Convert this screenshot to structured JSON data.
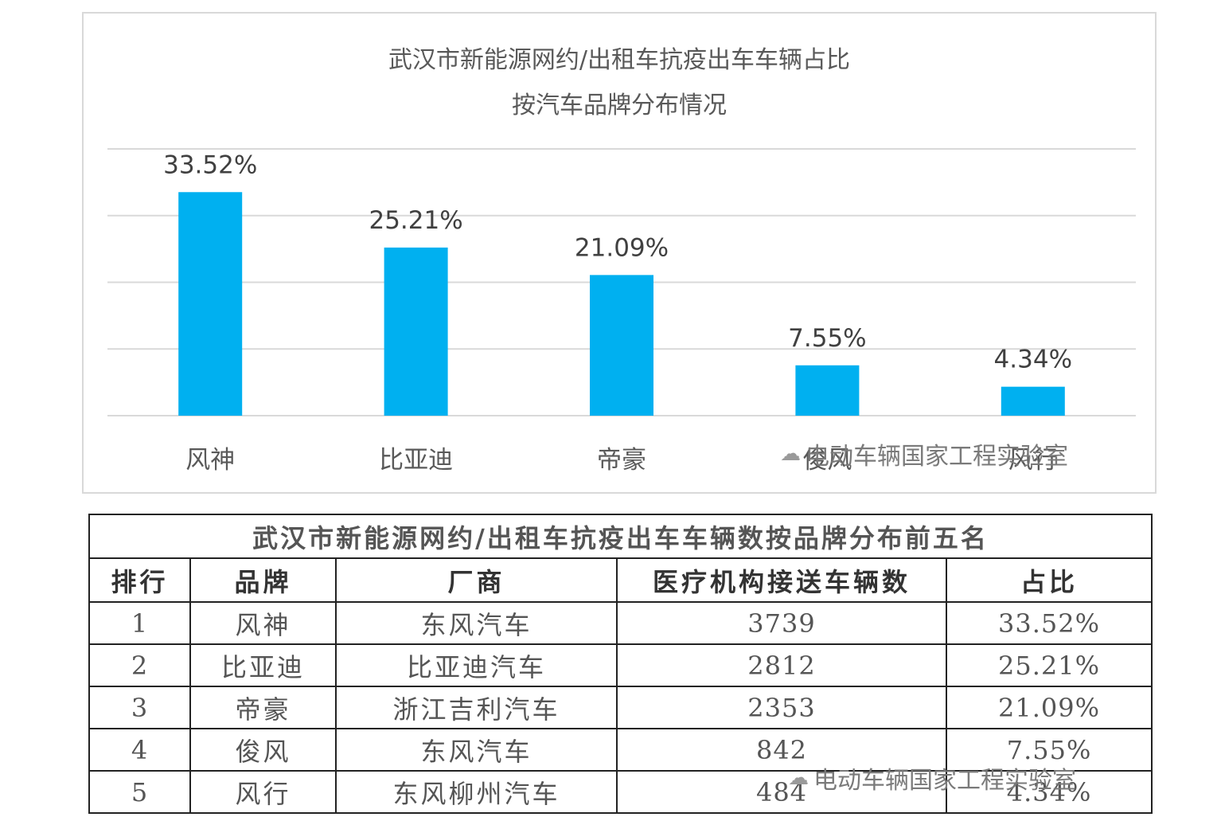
{
  "chart_data": {
    "type": "bar",
    "title": "武汉市新能源网约/出租车抗疫出车车辆占比",
    "subtitle": "按汽车品牌分布情况",
    "categories": [
      "风神",
      "比亚迪",
      "帝豪",
      "俊风",
      "风行"
    ],
    "values": [
      33.52,
      25.21,
      21.09,
      7.55,
      4.34
    ],
    "data_labels": [
      "33.52%",
      "25.21%",
      "21.09%",
      "7.55%",
      "4.34%"
    ],
    "ylim": [
      0,
      40
    ],
    "grid": true,
    "bar_color": "#00b0f0",
    "gridline_color": "#d9d9d9",
    "label_color": "#404040"
  },
  "watermark": {
    "text": "电动车辆国家工程实验室",
    "icon": "wechat-icon"
  },
  "table": {
    "title": "武汉市新能源网约/出租车抗疫出车车辆数按品牌分布前五名",
    "headers": [
      "排行",
      "品牌",
      "厂商",
      "医疗机构接送车辆数",
      "占比"
    ],
    "rows": [
      [
        "1",
        "风神",
        "东风汽车",
        "3739",
        "33.52%"
      ],
      [
        "2",
        "比亚迪",
        "比亚迪汽车",
        "2812",
        "25.21%"
      ],
      [
        "3",
        "帝豪",
        "浙江吉利汽车",
        "2353",
        "21.09%"
      ],
      [
        "4",
        "俊风",
        "东风汽车",
        "842",
        "7.55%"
      ],
      [
        "5",
        "风行",
        "东风柳州汽车",
        "484",
        "4.34%"
      ]
    ]
  }
}
